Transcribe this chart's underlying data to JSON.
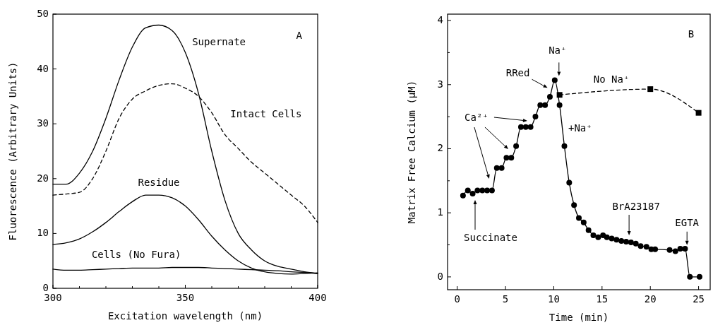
{
  "chart_data": [
    {
      "type": "line",
      "xlabel": "Excitation wavelength (nm)",
      "ylabel": "Fluorescence (Arbitrary Units)",
      "xlim": [
        300,
        400
      ],
      "ylim": [
        0,
        50
      ],
      "xticks": [
        300,
        {
          "value": 310,
          "label": null
        },
        {
          "value": 320,
          "label": null
        },
        {
          "value": 330,
          "label": null
        },
        {
          "value": 340,
          "label": null
        },
        350,
        {
          "value": 360,
          "label": null
        },
        {
          "value": 370,
          "label": null
        },
        {
          "value": 380,
          "label": null
        },
        {
          "value": 390,
          "label": null
        },
        400
      ],
      "yticks": [
        0,
        10,
        20,
        30,
        40,
        50
      ],
      "x": [
        300,
        305,
        310,
        315,
        320,
        325,
        330,
        335,
        340,
        345,
        350,
        355,
        360,
        365,
        370,
        375,
        380,
        385,
        390,
        395,
        400
      ],
      "annotations": [
        "A"
      ],
      "series": [
        {
          "name": "Supernate",
          "color": "#000000",
          "line_style": "solid",
          "values": [
            19,
            19,
            21,
            25,
            31,
            38,
            44,
            47.5,
            48,
            47,
            43,
            35.5,
            25,
            16,
            10,
            7,
            5,
            4,
            3.5,
            3,
            2.7
          ]
        },
        {
          "name": "Intact Cells",
          "color": "#000000",
          "line_style": "dashed",
          "values": [
            17,
            17.2,
            17.5,
            20,
            25,
            31,
            34.5,
            36,
            37,
            37.3,
            36.5,
            35,
            32,
            28,
            25.5,
            23,
            21,
            19,
            17,
            15,
            12
          ]
        },
        {
          "name": "Residue",
          "color": "#000000",
          "line_style": "solid",
          "values": [
            8,
            8.3,
            9,
            10.3,
            12,
            14,
            15.8,
            17,
            17,
            16.5,
            15,
            12.5,
            9.5,
            7,
            5,
            3.7,
            3,
            2.7,
            2.6,
            2.7,
            2.8
          ]
        },
        {
          "name": "Cells (No Fura)",
          "color": "#000000",
          "line_style": "solid",
          "values": [
            3.5,
            3.3,
            3.3,
            3.4,
            3.5,
            3.6,
            3.7,
            3.7,
            3.7,
            3.8,
            3.8,
            3.8,
            3.7,
            3.6,
            3.5,
            3.4,
            3.3,
            3.2,
            3,
            2.9,
            2.7
          ]
        }
      ]
    },
    {
      "type": "line",
      "xlabel": "Time (min)",
      "ylabel": "Matrix Free Calcium (μM)",
      "xlim": [
        -1,
        26.2
      ],
      "ylim": [
        -0.2,
        4.1
      ],
      "xticks": [
        0,
        5,
        10,
        15,
        20,
        25
      ],
      "yticks": [
        0,
        {
          "value": 0.5,
          "label": null
        },
        1,
        {
          "value": 1.5,
          "label": null
        },
        2,
        {
          "value": 2.5,
          "label": null
        },
        3,
        {
          "value": 3.5,
          "label": null
        },
        4
      ],
      "annotations": [
        "B",
        "No Na⁺",
        "+Na⁺",
        {
          "text": "Na⁺",
          "x": 10.1,
          "y": 3.07
        },
        {
          "text": "RRed",
          "x": 9.5,
          "y": 2.95
        },
        "Ca²⁺",
        "Succinate",
        {
          "text": "BrA23187",
          "x": 17.8,
          "y": 0.55
        },
        {
          "text": "EGTA",
          "x": 23.8,
          "y": 0.42
        }
      ],
      "series": [
        {
          "color": "#000000",
          "marker": "circle",
          "line_style": "solid",
          "x": [
            0.6,
            1.1,
            1.6,
            2.1,
            2.6,
            3.1,
            3.6,
            4.1,
            4.6,
            5.1,
            5.6,
            6.1,
            6.6,
            7.1,
            7.6,
            8.1,
            8.6,
            9.1,
            9.6,
            10.1,
            10.6,
            11.1,
            11.6,
            12.1,
            12.6,
            13.1,
            13.6,
            14.1,
            14.6,
            15.1,
            15.5,
            16,
            16.5,
            17,
            17.5,
            18,
            18.5,
            19,
            19.6,
            20.1,
            20.5,
            22,
            22.6,
            23.1,
            23.6,
            24.1,
            25.1
          ],
          "values": [
            1.27,
            1.35,
            1.3,
            1.35,
            1.35,
            1.35,
            1.35,
            1.7,
            1.7,
            1.86,
            1.86,
            2.04,
            2.34,
            2.34,
            2.34,
            2.5,
            2.68,
            2.68,
            2.81,
            3.07,
            2.68,
            2.04,
            1.47,
            1.12,
            0.92,
            0.85,
            0.73,
            0.65,
            0.62,
            0.65,
            0.62,
            0.6,
            0.58,
            0.56,
            0.55,
            0.54,
            0.52,
            0.48,
            0.47,
            0.43,
            0.43,
            0.42,
            0.4,
            0.44,
            0.44,
            0,
            0
          ]
        },
        {
          "color": "#000000",
          "marker": "square",
          "line_style": "dashed",
          "x": [
            10.6,
            20,
            25
          ],
          "values": [
            2.84,
            2.93,
            2.56
          ]
        }
      ]
    }
  ]
}
